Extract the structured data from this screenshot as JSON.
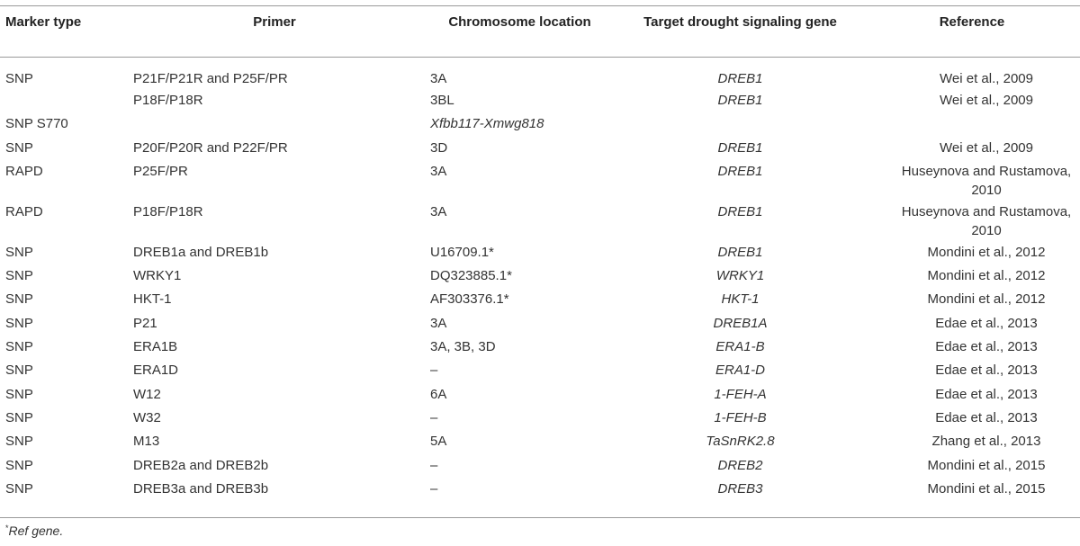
{
  "headers": {
    "marker_type": "Marker type",
    "primer": "Primer",
    "chromosome": "Chromosome location",
    "target_gene": "Target drought signaling gene",
    "reference": "Reference"
  },
  "rows": [
    {
      "type": "SNP",
      "primer": "P21F/P21R and P25F/PR",
      "chrom": "3A",
      "gene": "DREB1",
      "ref": "Wei et al., 2009"
    },
    {
      "type": "",
      "primer": "P18F/P18R",
      "chrom": "3BL",
      "gene": "DREB1",
      "ref": "Wei et al., 2009"
    },
    {
      "type": "SNP S770",
      "primer": "",
      "chrom": "Xfbb117-Xmwg818",
      "gene": "",
      "ref": ""
    },
    {
      "type": "SNP",
      "primer": "P20F/P20R and P22F/PR",
      "chrom": "3D",
      "gene": "DREB1",
      "ref": "Wei et al., 2009"
    },
    {
      "type": "RAPD",
      "primer": "P25F/PR",
      "chrom": "3A",
      "gene": "DREB1",
      "ref": "Huseynova and Rustamova, 2010"
    },
    {
      "type": "RAPD",
      "primer": "P18F/P18R",
      "chrom": "3A",
      "gene": "DREB1",
      "ref": "Huseynova and Rustamova, 2010"
    },
    {
      "type": "SNP",
      "primer": "DREB1a and DREB1b",
      "chrom": "U16709.1*",
      "gene": "DREB1",
      "ref": "Mondini et al., 2012"
    },
    {
      "type": "SNP",
      "primer": "WRKY1",
      "chrom": "DQ323885.1*",
      "gene": "WRKY1",
      "ref": "Mondini et al., 2012"
    },
    {
      "type": "SNP",
      "primer": "HKT-1",
      "chrom": "AF303376.1*",
      "gene": "HKT-1",
      "ref": "Mondini et al., 2012"
    },
    {
      "type": "SNP",
      "primer": "P21",
      "chrom": "3A",
      "gene": "DREB1A",
      "ref": "Edae et al., 2013"
    },
    {
      "type": "SNP",
      "primer": "ERA1B",
      "chrom": "3A, 3B, 3D",
      "gene": "ERA1-B",
      "ref": "Edae et al., 2013"
    },
    {
      "type": "SNP",
      "primer": "ERA1D",
      "chrom": "–",
      "gene": "ERA1-D",
      "ref": "Edae et al., 2013"
    },
    {
      "type": "SNP",
      "primer": "W12",
      "chrom": "6A",
      "gene": "1-FEH-A",
      "ref": "Edae et al., 2013"
    },
    {
      "type": "SNP",
      "primer": "W32",
      "chrom": "–",
      "gene": "1-FEH-B",
      "ref": "Edae et al., 2013"
    },
    {
      "type": "SNP",
      "primer": "M13",
      "chrom": "5A",
      "gene": "TaSnRK2.8",
      "ref": "Zhang et al., 2013"
    },
    {
      "type": "SNP",
      "primer": "DREB2a and DREB2b",
      "chrom": "–",
      "gene": "DREB2",
      "ref": "Mondini et al., 2015"
    },
    {
      "type": "SNP",
      "primer": "DREB3a and DREB3b",
      "chrom": "–",
      "gene": "DREB3",
      "ref": "Mondini et al., 2015"
    }
  ],
  "footnote": {
    "mark": "*",
    "text": "Ref gene."
  }
}
